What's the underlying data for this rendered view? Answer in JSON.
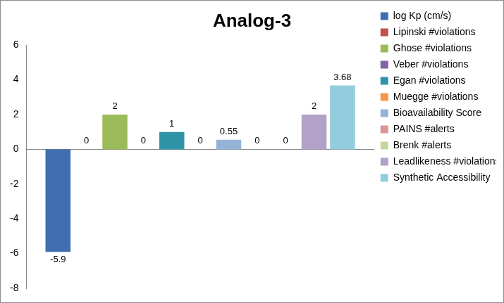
{
  "chart_data": {
    "type": "bar",
    "title": "Analog-3",
    "categories": [
      null
    ],
    "series": [
      {
        "name": "log Kp (cm/s)",
        "color": "#3f6fb0",
        "values": [
          -5.9
        ]
      },
      {
        "name": "Lipinski #violations",
        "color": "#c0504d",
        "values": [
          0
        ]
      },
      {
        "name": "Ghose #violations",
        "color": "#9bbb59",
        "values": [
          2
        ]
      },
      {
        "name": "Veber #violations",
        "color": "#8064a2",
        "values": [
          0
        ]
      },
      {
        "name": "Egan #violations",
        "color": "#2f93a8",
        "values": [
          1
        ]
      },
      {
        "name": "Muegge #violations",
        "color": "#f79646",
        "values": [
          0
        ]
      },
      {
        "name": "Bioavailability Score",
        "color": "#95b3d7",
        "values": [
          0.55
        ]
      },
      {
        "name": "PAINS #alerts",
        "color": "#d99694",
        "values": [
          0
        ]
      },
      {
        "name": "Brenk #alerts",
        "color": "#c3d69b",
        "values": [
          0
        ]
      },
      {
        "name": "Leadlikeness #violations",
        "color": "#b3a2c7",
        "values": [
          2
        ]
      },
      {
        "name": "Synthetic Accessibility",
        "color": "#93cddd",
        "values": [
          3.68
        ]
      }
    ],
    "ylim": [
      -8,
      6
    ],
    "yticks": [
      -8,
      -6,
      -4,
      -2,
      0,
      2,
      4,
      6
    ],
    "grid": false,
    "legend": "right",
    "data_labels": true
  }
}
